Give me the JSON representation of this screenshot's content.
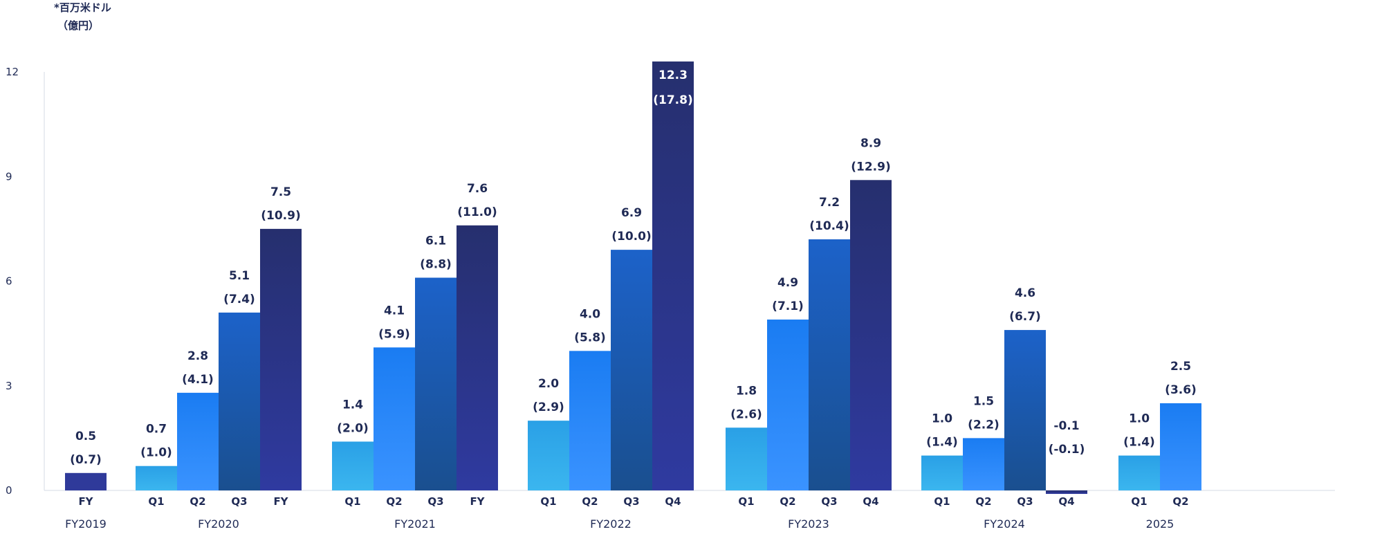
{
  "chart_data": {
    "type": "bar",
    "unit_line1": "*百万米ドル",
    "unit_line2": "（億円）",
    "ylim": [
      0,
      12
    ],
    "yticks": [
      0,
      3,
      6,
      9,
      12
    ],
    "grid": false,
    "groups": [
      {
        "name": "FY2019",
        "bars": [
          {
            "label": "FY",
            "value": 0.5,
            "yen": "(0.7)",
            "value_text": "0.5"
          }
        ]
      },
      {
        "name": "FY2020",
        "bars": [
          {
            "label": "Q1",
            "value": 0.7,
            "yen": "(1.0)",
            "value_text": "0.7"
          },
          {
            "label": "Q2",
            "value": 2.8,
            "yen": "(4.1)",
            "value_text": "2.8"
          },
          {
            "label": "Q3",
            "value": 5.1,
            "yen": "(7.4)",
            "value_text": "5.1"
          },
          {
            "label": "FY",
            "value": 7.5,
            "yen": "(10.9)",
            "value_text": "7.5"
          }
        ]
      },
      {
        "name": "FY2021",
        "bars": [
          {
            "label": "Q1",
            "value": 1.4,
            "yen": "(2.0)",
            "value_text": "1.4"
          },
          {
            "label": "Q2",
            "value": 4.1,
            "yen": "(5.9)",
            "value_text": "4.1"
          },
          {
            "label": "Q3",
            "value": 6.1,
            "yen": "(8.8)",
            "value_text": "6.1"
          },
          {
            "label": "FY",
            "value": 7.6,
            "yen": "(11.0)",
            "value_text": "7.6"
          }
        ]
      },
      {
        "name": "FY2022",
        "bars": [
          {
            "label": "Q1",
            "value": 2.0,
            "yen": "(2.9)",
            "value_text": "2.0"
          },
          {
            "label": "Q2",
            "value": 4.0,
            "yen": "(5.8)",
            "value_text": "4.0"
          },
          {
            "label": "Q3",
            "value": 6.9,
            "yen": "(10.0)",
            "value_text": "6.9"
          },
          {
            "label": "Q4",
            "value": 12.3,
            "yen": "(17.8)",
            "value_text": "12.3"
          }
        ]
      },
      {
        "name": "FY2023",
        "bars": [
          {
            "label": "Q1",
            "value": 1.8,
            "yen": "(2.6)",
            "value_text": "1.8"
          },
          {
            "label": "Q2",
            "value": 4.9,
            "yen": "(7.1)",
            "value_text": "4.9"
          },
          {
            "label": "Q3",
            "value": 7.2,
            "yen": "(10.4)",
            "value_text": "7.2"
          },
          {
            "label": "Q4",
            "value": 8.9,
            "yen": "(12.9)",
            "value_text": "8.9"
          }
        ]
      },
      {
        "name": "FY2024",
        "bars": [
          {
            "label": "Q1",
            "value": 1.0,
            "yen": "(1.4)",
            "value_text": "1.0"
          },
          {
            "label": "Q2",
            "value": 1.5,
            "yen": "(2.2)",
            "value_text": "1.5"
          },
          {
            "label": "Q3",
            "value": 4.6,
            "yen": "(6.7)",
            "value_text": "4.6"
          },
          {
            "label": "Q4",
            "value": -0.1,
            "yen": "(-0.1)",
            "value_text": "-0.1"
          }
        ]
      },
      {
        "name": "2025",
        "bars": [
          {
            "label": "Q1",
            "value": 1.0,
            "yen": "(1.4)",
            "value_text": "1.0"
          },
          {
            "label": "Q2",
            "value": 2.5,
            "yen": "(3.6)",
            "value_text": "2.5"
          }
        ]
      }
    ],
    "colors": {
      "Q1": [
        "#2aa0e6",
        "#3bb6ef"
      ],
      "Q2": [
        "#1a7cf2",
        "#3a93ff"
      ],
      "Q3": [
        "#1c62c9",
        "#1a4f8f"
      ],
      "FY": [
        "#262f6e",
        "#2f3aa0"
      ],
      "FY2019": [
        "#2f3a9a",
        "#2f3a9a"
      ],
      "text": "#1f2a55",
      "axis": "#d6dbe6"
    }
  }
}
